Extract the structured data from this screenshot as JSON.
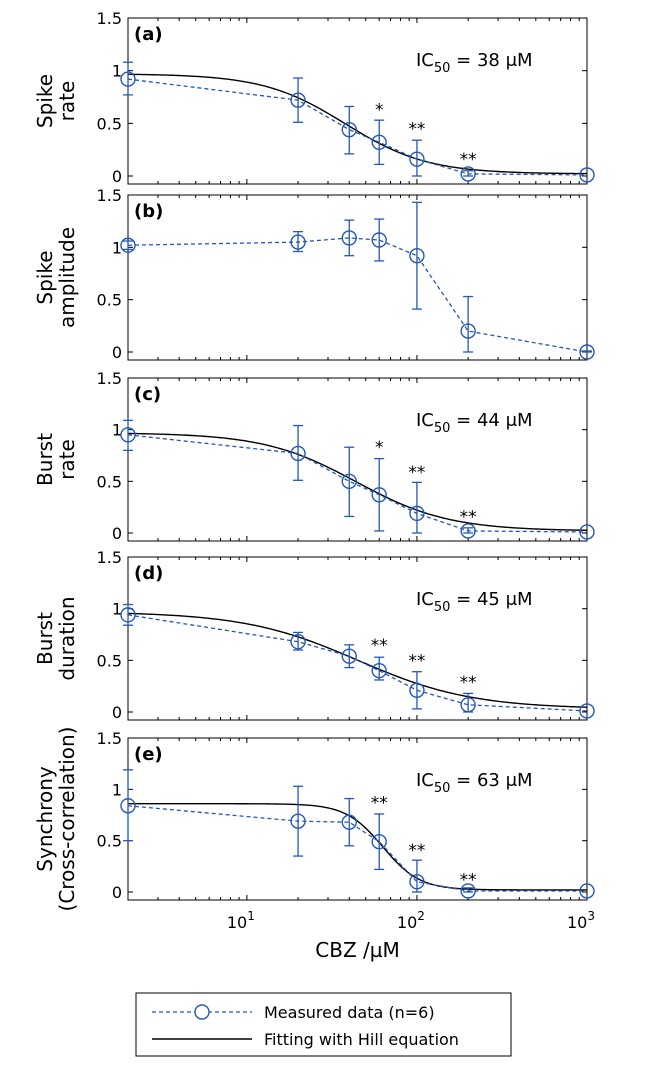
{
  "chart_data": {
    "type": "line",
    "xlabel": "CBZ /µM",
    "x_scale": "log",
    "xlim": [
      2,
      1000
    ],
    "x": [
      2,
      20,
      40,
      60,
      100,
      200,
      1000
    ],
    "x_tick_labels": [
      {
        "base": "10",
        "exp": "1"
      },
      {
        "base": "10",
        "exp": "2"
      },
      {
        "base": "10",
        "exp": "3"
      }
    ],
    "colors": {
      "measured": "#2457b8",
      "fit": "#000000"
    },
    "legend": {
      "placement": "bottom",
      "entries": [
        "Measured data (n=6)",
        "Fitting with Hill equation"
      ]
    },
    "panels": [
      {
        "label": "(a)",
        "ylabel": [
          "Spike",
          "rate"
        ],
        "ylim": [
          0,
          1.5
        ],
        "yticks": [
          "0",
          "0.5",
          "1",
          "1.5"
        ],
        "ic50_text": {
          "prefix": "IC",
          "sub": "50",
          "rest": " = 38 μM"
        },
        "ic50": 38,
        "fit_top": 0.97,
        "fit_bottom": 0.02,
        "hill_n": 1.8,
        "measured": [
          0.92,
          0.72,
          0.44,
          0.32,
          0.16,
          0.02,
          0.01
        ],
        "err_hi": [
          1.08,
          0.93,
          0.66,
          0.53,
          0.34,
          0.05,
          0.01
        ],
        "err_lo": [
          0.77,
          0.51,
          0.21,
          0.11,
          0.0,
          0.0,
          0.01
        ],
        "significance": [
          {
            "x": 60,
            "y": 0.63,
            "text": "*"
          },
          {
            "x": 100,
            "y": 0.45,
            "text": "**"
          },
          {
            "x": 200,
            "y": 0.16,
            "text": "**"
          }
        ]
      },
      {
        "label": "(b)",
        "ylabel": [
          "Spike",
          "amplitude"
        ],
        "ylim": [
          0,
          1.5
        ],
        "yticks": [
          "0",
          "0.5",
          "1",
          "1.5"
        ],
        "measured": [
          1.02,
          1.05,
          1.09,
          1.07,
          0.92,
          0.2,
          0.0
        ],
        "err_hi": [
          1.06,
          1.15,
          1.26,
          1.27,
          1.43,
          0.53,
          0.01
        ],
        "err_lo": [
          0.98,
          0.96,
          0.92,
          0.87,
          0.41,
          0.0,
          0.0
        ],
        "significance": []
      },
      {
        "label": "(c)",
        "ylabel": [
          "Burst",
          "rate"
        ],
        "ylim": [
          0,
          1.5
        ],
        "yticks": [
          "0",
          "0.5",
          "1",
          "1.5"
        ],
        "ic50_text": {
          "prefix": "IC",
          "sub": "50",
          "rest": " = 44 μM"
        },
        "ic50": 44,
        "fit_top": 0.97,
        "fit_bottom": 0.02,
        "hill_n": 1.6,
        "measured": [
          0.95,
          0.77,
          0.5,
          0.37,
          0.19,
          0.02,
          0.01
        ],
        "err_hi": [
          1.09,
          1.04,
          0.83,
          0.72,
          0.49,
          0.05,
          0.01
        ],
        "err_lo": [
          0.8,
          0.51,
          0.16,
          0.02,
          0.0,
          0.0,
          0.01
        ],
        "significance": [
          {
            "x": 60,
            "y": 0.83,
            "text": "*"
          },
          {
            "x": 100,
            "y": 0.59,
            "text": "**"
          },
          {
            "x": 200,
            "y": 0.16,
            "text": "**"
          }
        ]
      },
      {
        "label": "(d)",
        "ylabel": [
          "Burst",
          "duration"
        ],
        "ylim": [
          0,
          1.5
        ],
        "yticks": [
          "0",
          "0.5",
          "1",
          "1.5"
        ],
        "ic50_text": {
          "prefix": "IC",
          "sub": "50",
          "rest": " = 45 μM"
        },
        "ic50": 45,
        "fit_top": 0.97,
        "fit_bottom": 0.03,
        "hill_n": 1.3,
        "measured": [
          0.94,
          0.68,
          0.54,
          0.4,
          0.21,
          0.07,
          0.01
        ],
        "err_hi": [
          1.04,
          0.77,
          0.65,
          0.53,
          0.39,
          0.18,
          0.01
        ],
        "err_lo": [
          0.84,
          0.6,
          0.43,
          0.31,
          0.03,
          0.0,
          0.01
        ],
        "significance": [
          {
            "x": 60,
            "y": 0.65,
            "text": "**"
          },
          {
            "x": 100,
            "y": 0.5,
            "text": "**"
          },
          {
            "x": 200,
            "y": 0.29,
            "text": "**"
          }
        ]
      },
      {
        "label": "(e)",
        "ylabel": [
          "Synchrony",
          "(Cross-correlation)"
        ],
        "ylim": [
          0,
          1.5
        ],
        "yticks": [
          "0",
          "0.5",
          "1",
          "1.5"
        ],
        "ic50_text": {
          "prefix": "IC",
          "sub": "50",
          "rest": " = 63 μM"
        },
        "ic50": 63,
        "fit_top": 0.86,
        "fit_bottom": 0.02,
        "hill_n": 4,
        "measured": [
          0.84,
          0.69,
          0.68,
          0.49,
          0.1,
          0.01,
          0.01
        ],
        "err_hi": [
          1.19,
          1.03,
          0.91,
          0.76,
          0.31,
          0.04,
          0.01
        ],
        "err_lo": [
          0.5,
          0.35,
          0.45,
          0.22,
          0.0,
          0.0,
          0.01
        ],
        "significance": [
          {
            "x": 60,
            "y": 0.87,
            "text": "**"
          },
          {
            "x": 100,
            "y": 0.41,
            "text": "**"
          },
          {
            "x": 200,
            "y": 0.12,
            "text": "**"
          }
        ]
      }
    ]
  }
}
